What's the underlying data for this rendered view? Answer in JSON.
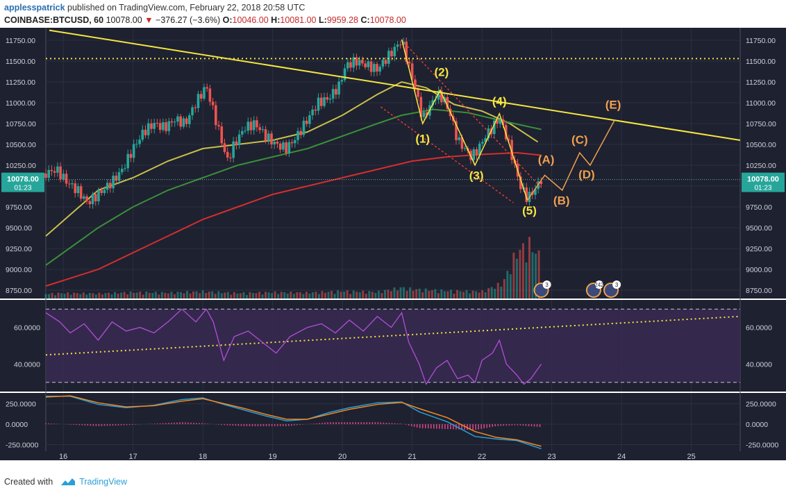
{
  "header": {
    "user": "applesspatrick",
    "published": "published on TradingView.com, February 22, 2018 20:58 UTC",
    "symbol": "COINBASE:BTCUSD, 60",
    "last": "10078.00",
    "change": "−376.27 (−3.6%)",
    "o_label": "O:",
    "o": "10046.00",
    "h_label": "H:",
    "h": "10081.00",
    "l_label": "L:",
    "l": "9959.28",
    "c_label": "C:",
    "c": "10078.00"
  },
  "footer": {
    "created": "Created with",
    "brand": "TradingView"
  },
  "colors": {
    "bg": "#1e2130",
    "grid": "#2c3040",
    "up": "#26a69a",
    "down": "#ef5350",
    "trend": "#f5e642",
    "ma_yellow": "#c9c04a",
    "ma_green": "#3a8f3a",
    "ma_red": "#d32f2f",
    "rsi": "#b24fd6",
    "macd": "#2a9fd6",
    "signal": "#f08a24",
    "hist": "#e0468a",
    "wave_yellow": "#f5e642",
    "wave_orange": "#f0a050"
  },
  "chart_data": [
    {
      "type": "candlestick",
      "title": "",
      "y_axis": {
        "ticks": [
          "11750.00",
          "11500.00",
          "11250.00",
          "11000.00",
          "10750.00",
          "10500.00",
          "10250.00",
          "10000.00",
          "9750.00",
          "9500.00",
          "9250.00",
          "9000.00",
          "8750.00"
        ],
        "range": [
          8650,
          11900
        ]
      },
      "x_axis": {
        "ticks": [
          "16",
          "17",
          "18",
          "19",
          "20",
          "21",
          "22",
          "23",
          "24",
          "25"
        ]
      },
      "last_price_label": "10078.00",
      "countdown_label": "01:23",
      "price_path": [
        [
          15.75,
          10150
        ],
        [
          15.9,
          10200
        ],
        [
          16.05,
          10050
        ],
        [
          16.2,
          9950
        ],
        [
          16.35,
          9800
        ],
        [
          16.5,
          9900
        ],
        [
          16.7,
          10050
        ],
        [
          16.85,
          10200
        ],
        [
          17.0,
          10450
        ],
        [
          17.15,
          10650
        ],
        [
          17.3,
          10750
        ],
        [
          17.45,
          10700
        ],
        [
          17.6,
          10800
        ],
        [
          17.75,
          10750
        ],
        [
          17.9,
          11000
        ],
        [
          18.05,
          11200
        ],
        [
          18.15,
          10900
        ],
        [
          18.25,
          10600
        ],
        [
          18.35,
          10300
        ],
        [
          18.45,
          10500
        ],
        [
          18.6,
          10700
        ],
        [
          18.75,
          10750
        ],
        [
          18.9,
          10600
        ],
        [
          19.05,
          10500
        ],
        [
          19.2,
          10450
        ],
        [
          19.35,
          10600
        ],
        [
          19.5,
          10800
        ],
        [
          19.65,
          11000
        ],
        [
          19.8,
          11050
        ],
        [
          19.95,
          11200
        ],
        [
          20.05,
          11450
        ],
        [
          20.2,
          11500
        ],
        [
          20.35,
          11450
        ],
        [
          20.5,
          11400
        ],
        [
          20.65,
          11550
        ],
        [
          20.75,
          11650
        ],
        [
          20.85,
          11750
        ],
        [
          20.95,
          11450
        ],
        [
          21.05,
          11150
        ],
        [
          21.15,
          10800
        ],
        [
          21.25,
          10950
        ],
        [
          21.35,
          11100
        ],
        [
          21.45,
          11050
        ],
        [
          21.55,
          10850
        ],
        [
          21.65,
          10550
        ],
        [
          21.75,
          10450
        ],
        [
          21.85,
          10350
        ],
        [
          21.95,
          10450
        ],
        [
          22.05,
          10600
        ],
        [
          22.15,
          10700
        ],
        [
          22.25,
          10820
        ],
        [
          22.35,
          10600
        ],
        [
          22.45,
          10300
        ],
        [
          22.55,
          10000
        ],
        [
          22.65,
          9850
        ],
        [
          22.75,
          9950
        ],
        [
          22.85,
          10080
        ]
      ],
      "volume_path": [
        [
          15.75,
          60
        ],
        [
          16.0,
          70
        ],
        [
          16.5,
          65
        ],
        [
          17.0,
          80
        ],
        [
          17.5,
          75
        ],
        [
          18.0,
          90
        ],
        [
          18.5,
          70
        ],
        [
          19.0,
          80
        ],
        [
          19.5,
          75
        ],
        [
          20.0,
          95
        ],
        [
          20.5,
          85
        ],
        [
          20.85,
          140
        ],
        [
          21.0,
          120
        ],
        [
          21.5,
          100
        ],
        [
          22.0,
          90
        ],
        [
          22.3,
          200
        ],
        [
          22.5,
          600
        ],
        [
          22.7,
          700
        ],
        [
          22.8,
          550
        ]
      ],
      "trendline": [
        [
          15.8,
          11870
        ],
        [
          25.7,
          10550
        ]
      ],
      "horizontal_dotted": 11530,
      "channel_upper": [
        [
          20.85,
          11750
        ],
        [
          22.85,
          9980
        ]
      ],
      "channel_lower": [
        [
          20.55,
          10950
        ],
        [
          22.45,
          9800
        ]
      ],
      "series": [
        {
          "name": "",
          "type": "line",
          "color": "#c9c04a",
          "values": [
            [
              15.75,
              9400
            ],
            [
              16.5,
              9950
            ],
            [
              17.0,
              10100
            ],
            [
              17.5,
              10300
            ],
            [
              18.0,
              10450
            ],
            [
              18.5,
              10500
            ],
            [
              19.0,
              10550
            ],
            [
              19.5,
              10650
            ],
            [
              20.0,
              10850
            ],
            [
              20.5,
              11100
            ],
            [
              20.85,
              11250
            ],
            [
              21.2,
              11180
            ],
            [
              21.6,
              10980
            ],
            [
              22.0,
              10900
            ],
            [
              22.4,
              10750
            ],
            [
              22.8,
              10530
            ]
          ]
        },
        {
          "name": "",
          "type": "line",
          "color": "#3a8f3a",
          "values": [
            [
              15.75,
              9050
            ],
            [
              16.5,
              9500
            ],
            [
              17.0,
              9750
            ],
            [
              17.5,
              9950
            ],
            [
              18.0,
              10100
            ],
            [
              18.5,
              10250
            ],
            [
              19.0,
              10350
            ],
            [
              19.5,
              10450
            ],
            [
              20.0,
              10600
            ],
            [
              20.5,
              10750
            ],
            [
              20.85,
              10850
            ],
            [
              21.3,
              10920
            ],
            [
              21.8,
              10880
            ],
            [
              22.3,
              10780
            ],
            [
              22.85,
              10680
            ]
          ]
        },
        {
          "name": "",
          "type": "line",
          "color": "#d32f2f",
          "values": [
            [
              15.75,
              8800
            ],
            [
              16.5,
              9000
            ],
            [
              17.0,
              9200
            ],
            [
              17.5,
              9400
            ],
            [
              18.0,
              9600
            ],
            [
              18.5,
              9750
            ],
            [
              19.0,
              9900
            ],
            [
              19.5,
              10000
            ],
            [
              20.0,
              10100
            ],
            [
              20.5,
              10200
            ],
            [
              21.0,
              10300
            ],
            [
              21.5,
              10350
            ],
            [
              22.0,
              10380
            ],
            [
              22.5,
              10400
            ],
            [
              22.85,
              10370
            ]
          ]
        }
      ],
      "wave_yellow": [
        [
          20.85,
          11760
        ],
        [
          21.15,
          10750
        ],
        [
          21.4,
          11150
        ],
        [
          21.9,
          10250
        ],
        [
          22.25,
          10870
        ],
        [
          22.65,
          9830
        ]
      ],
      "wave_orange": [
        [
          22.65,
          9830
        ],
        [
          22.9,
          10130
        ],
        [
          23.15,
          9950
        ],
        [
          23.4,
          10400
        ],
        [
          23.55,
          10250
        ],
        [
          23.9,
          10790
        ]
      ],
      "wave_labels_yellow": [
        {
          "text": "(1)",
          "x": 21.15,
          "y": 10520
        },
        {
          "text": "(2)",
          "x": 21.42,
          "y": 11320
        },
        {
          "text": "(3)",
          "x": 21.92,
          "y": 10080
        },
        {
          "text": "(4)",
          "x": 22.25,
          "y": 10970
        },
        {
          "text": "(5)",
          "x": 22.68,
          "y": 9660
        }
      ],
      "wave_labels_orange": [
        {
          "text": "(A)",
          "x": 22.92,
          "y": 10270
        },
        {
          "text": "(B)",
          "x": 23.14,
          "y": 9780
        },
        {
          "text": "(C)",
          "x": 23.4,
          "y": 10510
        },
        {
          "text": "(D)",
          "x": 23.5,
          "y": 10090
        },
        {
          "text": "(E)",
          "x": 23.88,
          "y": 10930
        }
      ],
      "event_badges": [
        {
          "x": 22.85,
          "label": "3"
        },
        {
          "x": 23.6,
          "label": "242"
        },
        {
          "x": 23.85,
          "label": "3"
        }
      ]
    },
    {
      "type": "line",
      "title": "",
      "y_axis": {
        "ticks": [
          "60.0000",
          "40.0000"
        ],
        "range": [
          25,
          75
        ]
      },
      "bands": {
        "upper": 70,
        "lower": 30
      },
      "trend_dotted": [
        [
          15.75,
          45
        ],
        [
          25.7,
          66
        ]
      ],
      "series": [
        {
          "name": "",
          "color": "#b24fd6",
          "values": [
            [
              15.75,
              68
            ],
            [
              15.95,
              63
            ],
            [
              16.1,
              57
            ],
            [
              16.3,
              62
            ],
            [
              16.5,
              53
            ],
            [
              16.7,
              63
            ],
            [
              16.9,
              58
            ],
            [
              17.1,
              60
            ],
            [
              17.3,
              57
            ],
            [
              17.5,
              63
            ],
            [
              17.7,
              70
            ],
            [
              17.9,
              63
            ],
            [
              18.05,
              70
            ],
            [
              18.15,
              63
            ],
            [
              18.3,
              42
            ],
            [
              18.45,
              55
            ],
            [
              18.65,
              58
            ],
            [
              18.85,
              52
            ],
            [
              19.05,
              46
            ],
            [
              19.25,
              55
            ],
            [
              19.5,
              60
            ],
            [
              19.7,
              62
            ],
            [
              19.9,
              57
            ],
            [
              20.1,
              64
            ],
            [
              20.3,
              58
            ],
            [
              20.5,
              66
            ],
            [
              20.7,
              60
            ],
            [
              20.85,
              68
            ],
            [
              20.95,
              52
            ],
            [
              21.1,
              40
            ],
            [
              21.2,
              29
            ],
            [
              21.35,
              38
            ],
            [
              21.5,
              42
            ],
            [
              21.65,
              32
            ],
            [
              21.8,
              34
            ],
            [
              21.9,
              30
            ],
            [
              22.0,
              42
            ],
            [
              22.15,
              46
            ],
            [
              22.25,
              53
            ],
            [
              22.35,
              40
            ],
            [
              22.5,
              34
            ],
            [
              22.6,
              29
            ],
            [
              22.7,
              32
            ],
            [
              22.85,
              40
            ]
          ]
        }
      ]
    },
    {
      "type": "line",
      "title": "",
      "y_axis": {
        "ticks": [
          "250.0000",
          "0.0000",
          "-250.0000"
        ],
        "range": [
          -330,
          380
        ]
      },
      "series": [
        {
          "name": "",
          "color": "#2a9fd6",
          "values": [
            [
              15.75,
              340
            ],
            [
              16.1,
              340
            ],
            [
              16.5,
              240
            ],
            [
              16.9,
              200
            ],
            [
              17.3,
              230
            ],
            [
              17.7,
              300
            ],
            [
              18.0,
              320
            ],
            [
              18.3,
              240
            ],
            [
              18.6,
              170
            ],
            [
              18.9,
              100
            ],
            [
              19.2,
              40
            ],
            [
              19.5,
              60
            ],
            [
              19.8,
              140
            ],
            [
              20.1,
              200
            ],
            [
              20.5,
              260
            ],
            [
              20.85,
              270
            ],
            [
              21.1,
              150
            ],
            [
              21.5,
              30
            ],
            [
              21.9,
              -150
            ],
            [
              22.2,
              -180
            ],
            [
              22.5,
              -200
            ],
            [
              22.85,
              -300
            ]
          ]
        },
        {
          "name": "",
          "color": "#f08a24",
          "values": [
            [
              15.75,
              330
            ],
            [
              16.1,
              345
            ],
            [
              16.5,
              260
            ],
            [
              16.9,
              210
            ],
            [
              17.3,
              225
            ],
            [
              17.7,
              280
            ],
            [
              18.0,
              310
            ],
            [
              18.3,
              250
            ],
            [
              18.6,
              190
            ],
            [
              18.9,
              120
            ],
            [
              19.2,
              60
            ],
            [
              19.5,
              60
            ],
            [
              19.8,
              120
            ],
            [
              20.1,
              180
            ],
            [
              20.5,
              240
            ],
            [
              20.85,
              265
            ],
            [
              21.1,
              190
            ],
            [
              21.5,
              80
            ],
            [
              21.9,
              -90
            ],
            [
              22.2,
              -160
            ],
            [
              22.5,
              -190
            ],
            [
              22.85,
              -270
            ]
          ]
        }
      ]
    }
  ]
}
